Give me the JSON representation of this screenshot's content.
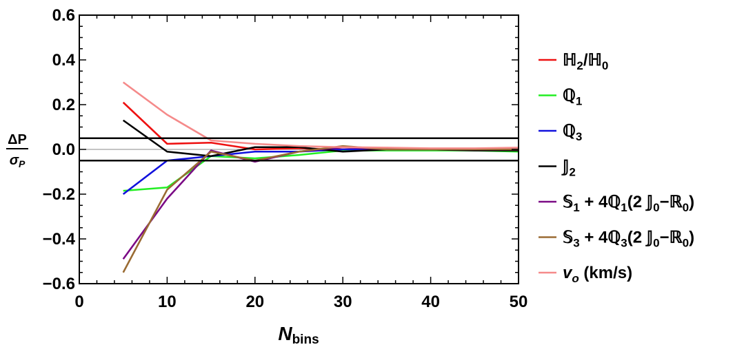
{
  "chart_data": {
    "type": "line",
    "xlabel": {
      "main": "N",
      "sub": "bins"
    },
    "ylabel": {
      "numerator": "ΔP",
      "denominator": "σ",
      "denominator_sub": "P"
    },
    "xlim": [
      0,
      50
    ],
    "ylim": [
      -0.6,
      0.6
    ],
    "x_ticks": [
      0,
      10,
      20,
      30,
      40,
      50
    ],
    "x_tick_labels": [
      "0",
      "10",
      "20",
      "30",
      "40",
      "50"
    ],
    "y_ticks": [
      -0.6,
      -0.4,
      -0.2,
      0.0,
      0.2,
      0.4,
      0.6
    ],
    "y_tick_labels": [
      "−0.6",
      "−0.4",
      "−0.2",
      "0.0",
      "0.2",
      "0.4",
      "0.6"
    ],
    "reference_lines": [
      0.05,
      -0.05
    ],
    "zero_line": 0,
    "grid": false,
    "legend_position": "right",
    "x": [
      5,
      10,
      15,
      20,
      25,
      30,
      35,
      40,
      45,
      50
    ],
    "series": [
      {
        "name": "ℍ2/ℍ0",
        "color": "#ee1111",
        "legend": [
          {
            "t": "ℍ"
          },
          {
            "t": "2",
            "sub": true
          },
          {
            "t": "/ℍ"
          },
          {
            "t": "0",
            "sub": true
          }
        ],
        "values": [
          0.21,
          0.025,
          0.03,
          0.0,
          0.005,
          0.0,
          0.0,
          0.0,
          0.0,
          0.0
        ]
      },
      {
        "name": "ℚ1",
        "color": "#22ee22",
        "legend": [
          {
            "t": "ℚ"
          },
          {
            "t": "1",
            "sub": true
          }
        ],
        "values": [
          -0.185,
          -0.17,
          -0.03,
          -0.04,
          -0.025,
          -0.005,
          -0.005,
          -0.005,
          -0.005,
          -0.01
        ]
      },
      {
        "name": "ℚ3",
        "color": "#1111dd",
        "legend": [
          {
            "t": "ℚ"
          },
          {
            "t": "3",
            "sub": true
          }
        ],
        "values": [
          -0.2,
          -0.05,
          -0.03,
          -0.01,
          -0.01,
          0.0,
          0.0,
          0.0,
          0.0,
          0.0
        ]
      },
      {
        "name": "𝕁2",
        "color": "#000000",
        "legend": [
          {
            "t": "𝕁"
          },
          {
            "t": "2",
            "sub": true
          }
        ],
        "values": [
          0.13,
          -0.01,
          -0.03,
          0.01,
          0.01,
          -0.01,
          0.0,
          0.0,
          -0.005,
          -0.005
        ]
      },
      {
        "name": "𝕊1 + 4ℚ1(2 𝕁0−ℝ0)",
        "color": "#7b0a85",
        "legend": [
          {
            "t": "𝕊"
          },
          {
            "t": "1",
            "sub": true
          },
          {
            "t": " + 4ℚ"
          },
          {
            "t": "1",
            "sub": true
          },
          {
            "t": "(2 𝕁"
          },
          {
            "t": "0",
            "sub": true
          },
          {
            "t": "−ℝ"
          },
          {
            "t": "0",
            "sub": true
          },
          {
            "t": ")"
          }
        ],
        "values": [
          -0.49,
          -0.22,
          -0.005,
          -0.055,
          -0.01,
          0.01,
          0.0,
          0.0,
          0.0,
          0.0
        ]
      },
      {
        "name": "𝕊3 + 4ℚ3(2 𝕁0−ℝ0)",
        "color": "#9a6b33",
        "legend": [
          {
            "t": "𝕊"
          },
          {
            "t": "3",
            "sub": true
          },
          {
            "t": " + 4ℚ"
          },
          {
            "t": "3",
            "sub": true
          },
          {
            "t": "(2 𝕁"
          },
          {
            "t": "0",
            "sub": true
          },
          {
            "t": "−ℝ"
          },
          {
            "t": "0",
            "sub": true
          },
          {
            "t": ")"
          }
        ],
        "values": [
          -0.55,
          -0.18,
          -0.01,
          -0.05,
          -0.01,
          0.015,
          0.0,
          0.0,
          0.0,
          0.0
        ]
      },
      {
        "name": "vo (km/s)",
        "color": "#f58a8a",
        "legend": [
          {
            "t": "v",
            "italic": true
          },
          {
            "t": "o",
            "sub": true,
            "italic": true
          },
          {
            "t": " (km/s)"
          }
        ],
        "values": [
          0.3,
          0.155,
          0.04,
          0.025,
          0.015,
          0.01,
          0.008,
          0.005,
          0.005,
          0.008
        ]
      }
    ]
  }
}
